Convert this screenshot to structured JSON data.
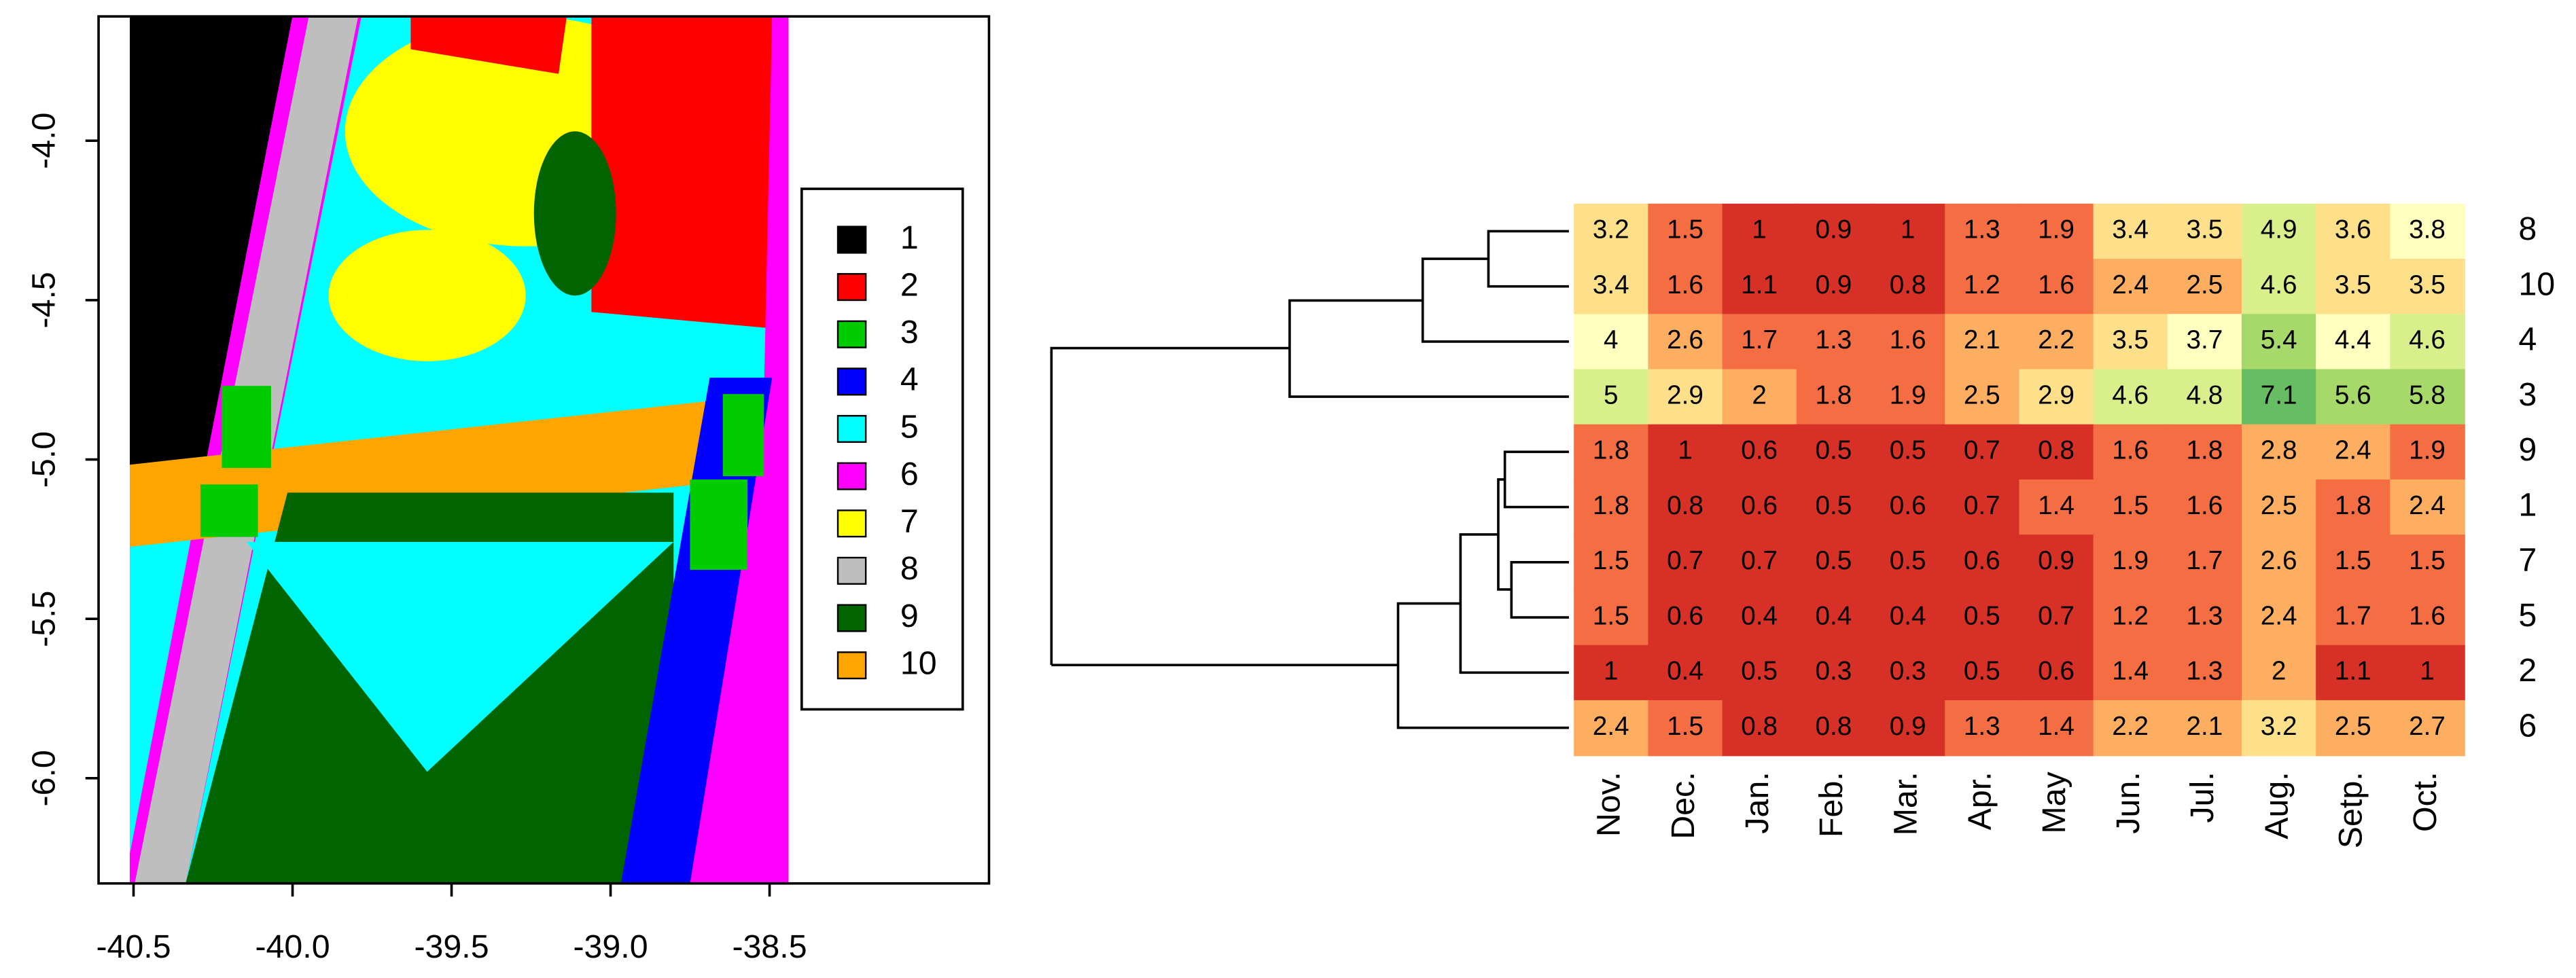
{
  "chart_data": [
    {
      "type": "raster",
      "xlim": [
        -40.61,
        -37.81
      ],
      "ylim": [
        -6.33,
        -3.61
      ],
      "xticks": [
        -40.5,
        {
          "value": -40,
          "label": "-40.0"
        },
        -39.5,
        {
          "value": -39,
          "label": "-39.0"
        },
        -38.5
      ],
      "yticks": [
        {
          "value": -4,
          "label": "-4.0"
        },
        -4.5,
        {
          "value": -5,
          "label": "-5.0"
        },
        -5.5,
        {
          "value": -6,
          "label": "-6.0"
        }
      ],
      "legend": [
        {
          "label": "1",
          "color": "#000000"
        },
        {
          "label": "2",
          "color": "#ff0000"
        },
        {
          "label": "3",
          "color": "#00cc00"
        },
        {
          "label": "4",
          "color": "#0000ff"
        },
        {
          "label": "5",
          "color": "#00ffff"
        },
        {
          "label": "6",
          "color": "#ff00ff"
        },
        {
          "label": "7",
          "color": "#ffff00"
        },
        {
          "label": "8",
          "color": "#bebebe"
        },
        {
          "label": "9",
          "color": "#006400"
        },
        {
          "label": "10",
          "color": "#ffa500"
        }
      ]
    },
    {
      "type": "heatmap",
      "categories": [
        "Nov.",
        "Dec.",
        "Jan.",
        "Feb.",
        "Mar.",
        "Apr.",
        "May",
        "Jun.",
        "Jul.",
        "Aug.",
        "Setp.",
        "Oct."
      ],
      "rows": [
        "8",
        "10",
        "4",
        "3",
        "9",
        "1",
        "7",
        "5",
        "2",
        "6"
      ],
      "values": [
        [
          3.2,
          1.5,
          1,
          0.9,
          1,
          1.3,
          1.9,
          3.4,
          3.5,
          4.9,
          3.6,
          3.8
        ],
        [
          3.4,
          1.6,
          1.1,
          0.9,
          0.8,
          1.2,
          1.6,
          2.4,
          2.5,
          4.6,
          3.5,
          3.5
        ],
        [
          4,
          2.6,
          1.7,
          1.3,
          1.6,
          2.1,
          2.2,
          3.5,
          3.7,
          5.4,
          4.4,
          4.6
        ],
        [
          5,
          2.9,
          2,
          1.8,
          1.9,
          2.5,
          2.9,
          4.6,
          4.8,
          7.1,
          5.6,
          5.8
        ],
        [
          1.8,
          1,
          0.6,
          0.5,
          0.5,
          0.7,
          0.8,
          1.6,
          1.8,
          2.8,
          2.4,
          1.9
        ],
        [
          1.8,
          0.8,
          0.6,
          0.5,
          0.6,
          0.7,
          1.4,
          1.5,
          1.6,
          2.5,
          1.8,
          2.4
        ],
        [
          1.5,
          0.7,
          0.7,
          0.5,
          0.5,
          0.6,
          0.9,
          1.9,
          1.7,
          2.6,
          1.5,
          1.5
        ],
        [
          1.5,
          0.6,
          0.4,
          0.4,
          0.4,
          0.5,
          0.7,
          1.2,
          1.3,
          2.4,
          1.7,
          1.6
        ],
        [
          1,
          0.4,
          0.5,
          0.3,
          0.3,
          0.5,
          0.6,
          1.4,
          1.3,
          2,
          1.1,
          1
        ],
        [
          2.4,
          1.5,
          0.8,
          0.8,
          0.9,
          1.3,
          1.4,
          2.2,
          2.1,
          3.2,
          2.5,
          2.7
        ]
      ],
      "colorscale": [
        "#d73027",
        "#f46d43",
        "#fdae61",
        "#fee08b",
        "#ffffbf",
        "#d9ef8b",
        "#a6d96a",
        "#66bd63"
      ]
    }
  ]
}
